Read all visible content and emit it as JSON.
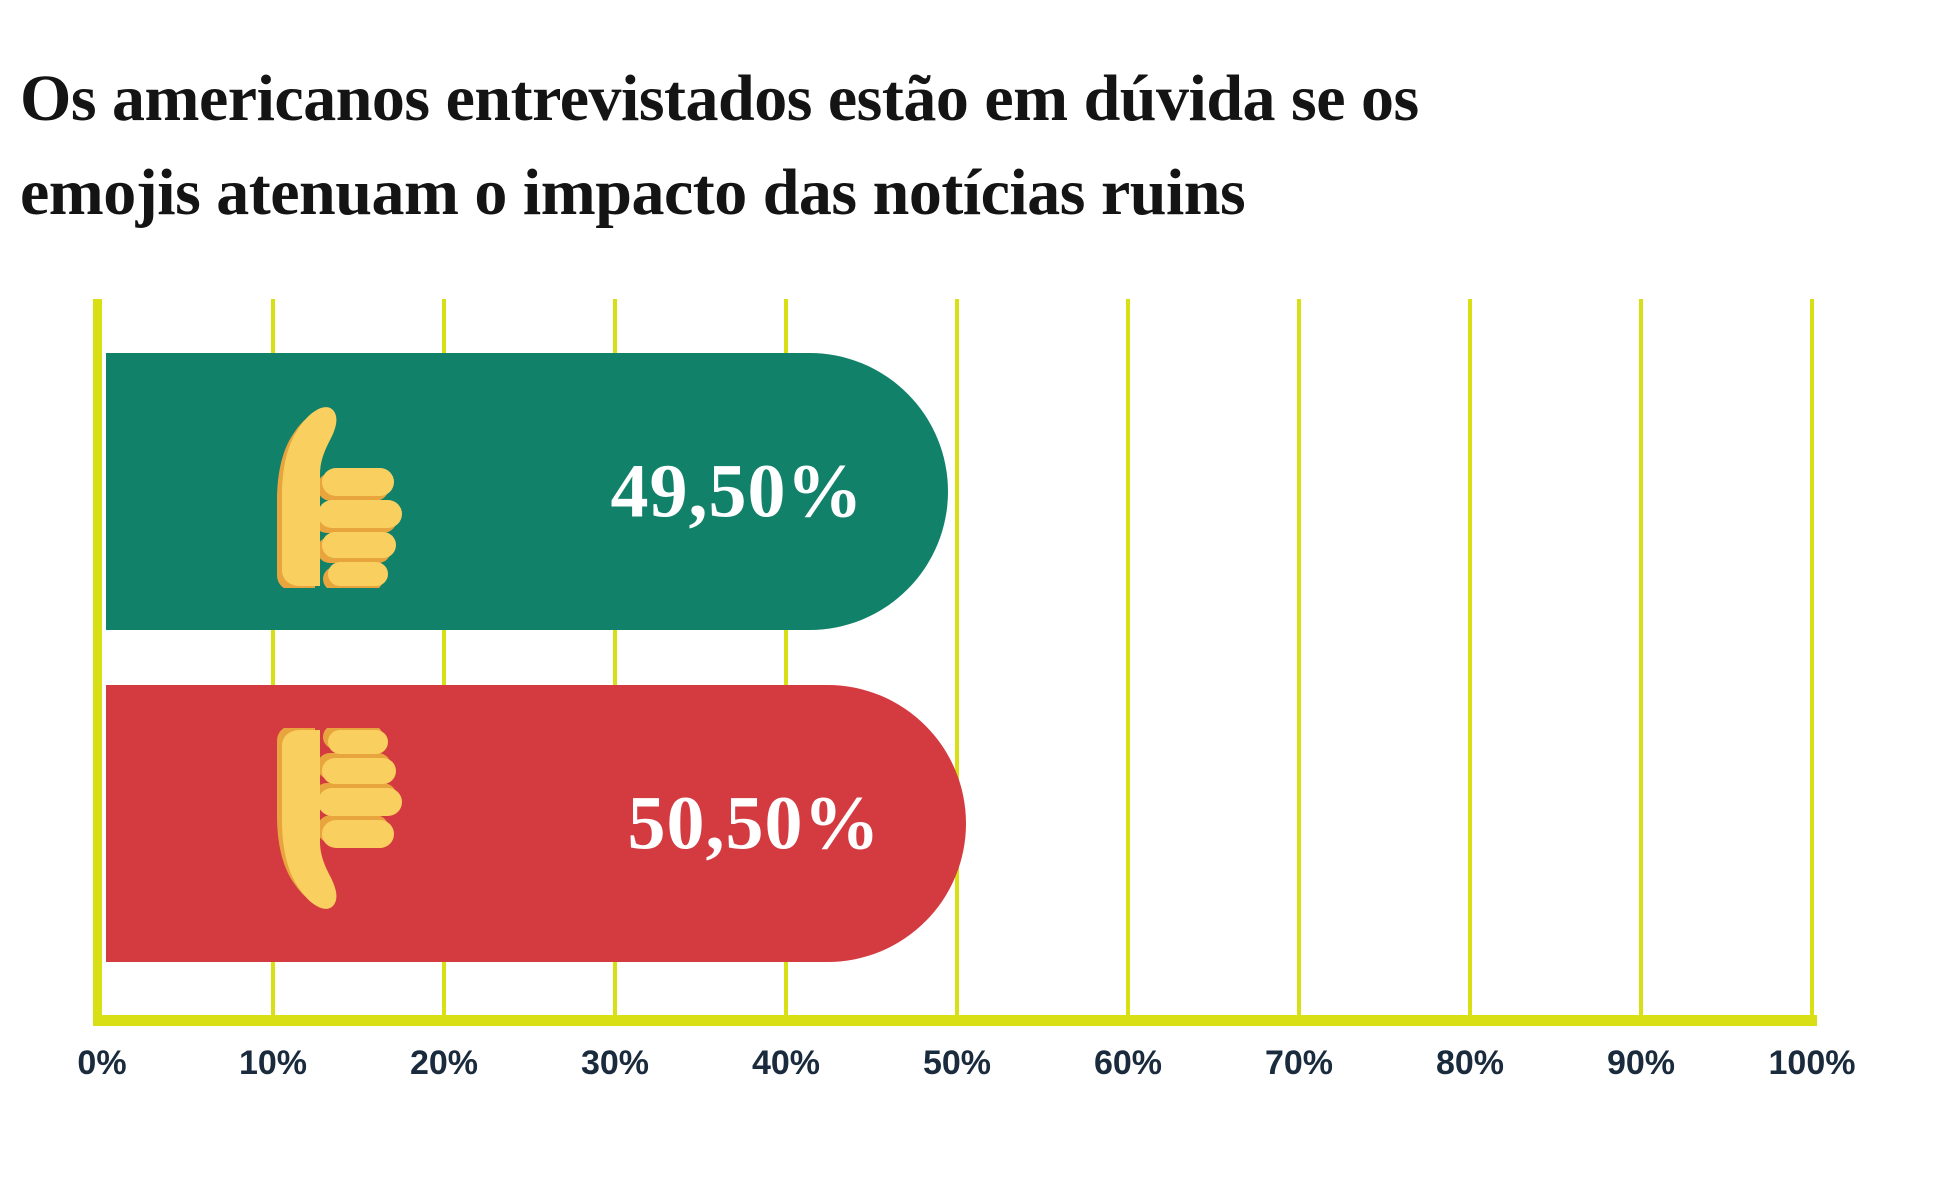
{
  "title": "Os americanos entrevistados estão em dúvida se os\nemojis atenuam o impacto das notícias ruins",
  "chart_data": {
    "type": "bar",
    "orientation": "horizontal",
    "title": "Os americanos entrevistados estão em dúvida se os emojis atenuam o impacto das notícias ruins",
    "categories": [
      "thumbs-up",
      "thumbs-down"
    ],
    "values": [
      49.5,
      50.5
    ],
    "value_labels": [
      "49,50%",
      "50,50%"
    ],
    "bar_colors": [
      "#12816A",
      "#D43B41"
    ],
    "xlim": [
      0,
      100
    ],
    "x_tick_labels": [
      "0%",
      "10%",
      "20%",
      "30%",
      "40%",
      "50%",
      "60%",
      "70%",
      "80%",
      "90%",
      "100%"
    ],
    "grid": true,
    "legend": "none",
    "axis_color": "#D8E015",
    "tick_label_color": "#1A2B3D",
    "value_label_color": "#FFFFFF"
  },
  "emoji": {
    "fill_color": "#F9CF5F",
    "shadow_color": "#E8A53E"
  }
}
